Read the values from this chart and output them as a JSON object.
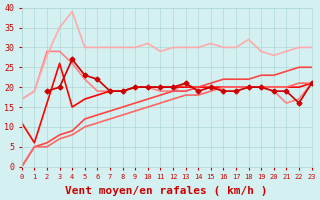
{
  "background_color": "#d4f0f0",
  "grid_color": "#b0d8d8",
  "title": "",
  "xlabel": "Vent moyen/en rafales ( km/h )",
  "ylabel": "",
  "xlim": [
    0,
    23
  ],
  "ylim": [
    0,
    40
  ],
  "yticks": [
    0,
    5,
    10,
    15,
    20,
    25,
    30,
    35,
    40
  ],
  "xticks": [
    0,
    1,
    2,
    3,
    4,
    5,
    6,
    7,
    8,
    9,
    10,
    11,
    12,
    13,
    14,
    15,
    16,
    17,
    18,
    19,
    20,
    21,
    22,
    23
  ],
  "lines": [
    {
      "x": [
        0,
        1,
        2,
        3,
        4,
        5,
        6,
        7,
        8,
        9,
        10,
        11,
        12,
        13,
        14,
        15,
        16,
        17,
        18,
        19,
        20,
        21,
        22,
        23
      ],
      "y": [
        17,
        19,
        29,
        29,
        26,
        22,
        19,
        19,
        19,
        20,
        20,
        19,
        19,
        21,
        19,
        20,
        19,
        19,
        20,
        20,
        19,
        16,
        17,
        21
      ],
      "color": "#ff8080",
      "lw": 1.2,
      "marker": null,
      "zorder": 2
    },
    {
      "x": [
        0,
        1,
        2,
        3,
        4,
        5,
        6,
        7,
        8,
        9,
        10,
        11,
        12,
        13,
        14,
        15,
        16,
        17,
        18,
        19,
        20,
        21,
        22,
        23
      ],
      "y": [
        17,
        19,
        28,
        35,
        39,
        30,
        30,
        30,
        30,
        30,
        31,
        29,
        30,
        30,
        30,
        31,
        30,
        30,
        32,
        29,
        28,
        29,
        30,
        30
      ],
      "color": "#ffaaaa",
      "lw": 1.2,
      "marker": null,
      "zorder": 2
    },
    {
      "x": [
        2,
        3,
        4,
        5,
        6,
        7,
        8,
        9,
        10,
        11,
        12,
        13,
        14,
        15,
        16,
        17,
        18,
        19,
        20,
        21,
        22,
        23
      ],
      "y": [
        19,
        20,
        27,
        23,
        22,
        19,
        19,
        20,
        20,
        20,
        20,
        21,
        19,
        20,
        19,
        19,
        20,
        20,
        19,
        19,
        16,
        21
      ],
      "color": "#cc0000",
      "lw": 1.2,
      "marker": "D",
      "markersize": 2.5,
      "zorder": 3
    },
    {
      "x": [
        0,
        1,
        2,
        3,
        4,
        5,
        6,
        7,
        8,
        9,
        10,
        11,
        12,
        13,
        14,
        15,
        16,
        17,
        18,
        19,
        20,
        21,
        22,
        23
      ],
      "y": [
        11,
        6,
        16,
        26,
        15,
        17,
        18,
        19,
        19,
        20,
        20,
        20,
        20,
        20,
        20,
        20,
        20,
        20,
        20,
        20,
        20,
        20,
        20,
        21
      ],
      "color": "#ff0000",
      "lw": 1.2,
      "marker": null,
      "zorder": 2
    },
    {
      "x": [
        0,
        1,
        2,
        3,
        4,
        5,
        6,
        7,
        8,
        9,
        10,
        11,
        12,
        13,
        14,
        15,
        16,
        17,
        18,
        19,
        20,
        21,
        22,
        23
      ],
      "y": [
        0,
        5,
        6,
        8,
        9,
        12,
        13,
        14,
        15,
        16,
        17,
        18,
        19,
        19,
        20,
        21,
        22,
        22,
        22,
        23,
        23,
        24,
        25,
        25
      ],
      "color": "#ff4444",
      "lw": 1.2,
      "marker": null,
      "zorder": 2
    },
    {
      "x": [
        0,
        1,
        2,
        3,
        4,
        5,
        6,
        7,
        8,
        9,
        10,
        11,
        12,
        13,
        14,
        15,
        16,
        17,
        18,
        19,
        20,
        21,
        22,
        23
      ],
      "y": [
        0,
        5,
        5,
        7,
        8,
        10,
        11,
        12,
        13,
        14,
        15,
        16,
        17,
        18,
        18,
        19,
        20,
        20,
        20,
        20,
        20,
        20,
        21,
        21
      ],
      "color": "#ff6666",
      "lw": 1.2,
      "marker": null,
      "zorder": 2
    }
  ],
  "arrow_color": "#ff0000",
  "xlabel_color": "#cc0000",
  "xlabel_fontsize": 8,
  "tick_color": "#cc0000",
  "tick_fontsize": 6
}
